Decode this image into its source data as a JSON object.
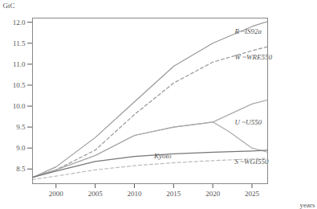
{
  "chart_data": {
    "type": "line",
    "xlabel": "years",
    "ylabel": "GtC",
    "xlim": [
      1997,
      2027
    ],
    "ylim": [
      8.15,
      12.1
    ],
    "xticks": [
      2000,
      2005,
      2010,
      2015,
      2020,
      2025
    ],
    "yticks": [
      8.5,
      {
        "value": 9.0,
        "label": "9.0"
      },
      9.5,
      {
        "value": 10.0,
        "label": "10.0"
      },
      10.5,
      {
        "value": 11.0,
        "label": "11.0"
      },
      11.5,
      {
        "value": 12.0,
        "label": "12.0"
      }
    ],
    "series": [
      {
        "name": "R ~IS92a",
        "color": "#999999",
        "line_style": "solid",
        "x": [
          1997,
          2000,
          2005,
          2010,
          2015,
          2020,
          2025,
          2027
        ],
        "values": [
          8.3,
          8.55,
          9.25,
          10.1,
          10.95,
          11.5,
          11.9,
          12.02
        ]
      },
      {
        "name": "W ~WRE550",
        "color": "#999999",
        "line_style": "dashed",
        "x": [
          1997,
          2000,
          2005,
          2010,
          2015,
          2020,
          2025,
          2027
        ],
        "values": [
          8.3,
          8.48,
          8.95,
          9.8,
          10.55,
          11.05,
          11.32,
          11.42
        ]
      },
      {
        "color": "#aaaaaa",
        "line_style": "solid",
        "x": [
          1997,
          2000,
          2005,
          2010,
          2015,
          2020,
          2025,
          2027
        ],
        "values": [
          8.3,
          8.48,
          8.82,
          9.3,
          9.5,
          9.62,
          10.05,
          10.15
        ]
      },
      {
        "name": "U ~U550",
        "color": "#aaaaaa",
        "line_style": "solid",
        "x": [
          1997,
          2000,
          2005,
          2010,
          2015,
          2020,
          2022,
          2025,
          2027
        ],
        "values": [
          8.3,
          8.48,
          8.82,
          9.3,
          9.5,
          9.62,
          9.4,
          9.0,
          8.9
        ]
      },
      {
        "name": "Kyoto",
        "color": "#777777",
        "line_style": "solid",
        "x": [
          1997,
          2000,
          2005,
          2010,
          2015,
          2020,
          2025,
          2027
        ],
        "values": [
          8.3,
          8.45,
          8.68,
          8.8,
          8.86,
          8.9,
          8.93,
          8.95
        ]
      },
      {
        "name": "S ~WGI550",
        "color": "#bbbbbb",
        "line_style": "dashed",
        "x": [
          1997,
          2000,
          2005,
          2010,
          2015,
          2020,
          2025,
          2027
        ],
        "values": [
          8.25,
          8.33,
          8.48,
          8.58,
          8.65,
          8.7,
          8.74,
          8.76
        ]
      }
    ],
    "annotations": [
      {
        "text": "R ~IS92a",
        "x": 2022.8,
        "y": 11.72
      },
      {
        "text": "W ~WRE550",
        "x": 2022.8,
        "y": 11.12
      },
      {
        "text": "U ~U550",
        "x": 2022.8,
        "y": 9.55
      },
      {
        "text": "Kyoto",
        "x": 2012.5,
        "y": 8.76
      },
      {
        "text": "S ~WGI550",
        "x": 2022.8,
        "y": 8.62
      }
    ]
  }
}
